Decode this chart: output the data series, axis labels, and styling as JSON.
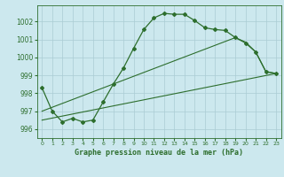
{
  "background_color": "#cce8ee",
  "grid_color": "#aaccd4",
  "line_color": "#2d6e2d",
  "marker_color": "#2d6e2d",
  "xlabel": "Graphe pression niveau de la mer (hPa)",
  "xlim": [
    -0.5,
    23.5
  ],
  "ylim": [
    995.5,
    1002.9
  ],
  "yticks": [
    996,
    997,
    998,
    999,
    1000,
    1001,
    1002
  ],
  "xticks": [
    0,
    1,
    2,
    3,
    4,
    5,
    6,
    7,
    8,
    9,
    10,
    11,
    12,
    13,
    14,
    15,
    16,
    17,
    18,
    19,
    20,
    21,
    22,
    23
  ],
  "series1_x": [
    0,
    1,
    2,
    3,
    4,
    5,
    6,
    7,
    8,
    9,
    10,
    11,
    12,
    13,
    14,
    15,
    16,
    17,
    18,
    19,
    20,
    21,
    22,
    23
  ],
  "series1_y": [
    998.3,
    997.0,
    996.4,
    996.6,
    996.4,
    996.5,
    997.5,
    998.5,
    999.4,
    1000.5,
    1001.55,
    1002.2,
    1002.45,
    1002.4,
    1002.4,
    1002.05,
    1001.65,
    1001.55,
    1001.5,
    1001.1,
    1000.8,
    1000.3,
    999.2,
    999.1
  ],
  "series2_x": [
    0,
    19,
    20,
    21,
    22,
    23
  ],
  "series2_y": [
    997.0,
    1001.1,
    1000.85,
    1000.3,
    999.2,
    999.1
  ],
  "series3_x": [
    0,
    23
  ],
  "series3_y": [
    996.5,
    999.1
  ],
  "figsize": [
    3.2,
    2.0
  ],
  "dpi": 100
}
